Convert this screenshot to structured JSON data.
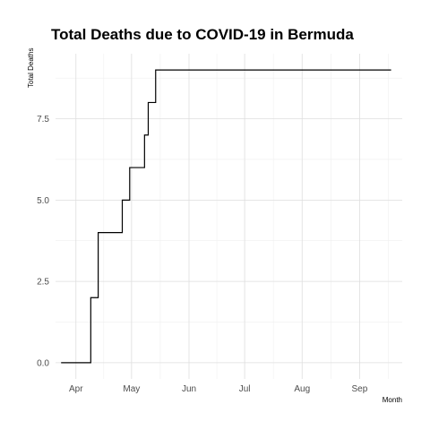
{
  "chart_data": {
    "type": "line",
    "title": "Total Deaths due to COVID-19 in Bermuda",
    "xlabel": "Month",
    "ylabel": "Total Deaths",
    "x_ticks": [
      {
        "label": "Apr",
        "date": "2020-04-01"
      },
      {
        "label": "May",
        "date": "2020-05-01"
      },
      {
        "label": "Jun",
        "date": "2020-06-01"
      },
      {
        "label": "Jul",
        "date": "2020-07-01"
      },
      {
        "label": "Aug",
        "date": "2020-08-01"
      },
      {
        "label": "Sep",
        "date": "2020-09-01"
      }
    ],
    "y_ticks": [
      "0.0",
      "2.5",
      "5.0",
      "7.5"
    ],
    "xlim": [
      "2020-03-21",
      "2020-09-24"
    ],
    "ylim": [
      -0.5,
      9.5
    ],
    "grid": true,
    "legend": "none",
    "line_color": "#000000",
    "series": [
      {
        "x": [
          "2020-03-24",
          "2020-04-08",
          "2020-04-09",
          "2020-04-10",
          "2020-04-13",
          "2020-04-14",
          "2020-04-26",
          "2020-04-27",
          "2020-04-30",
          "2020-05-01",
          "2020-05-08",
          "2020-05-09",
          "2020-05-10",
          "2020-05-14",
          "2020-09-18"
        ],
        "y": [
          0,
          0,
          2,
          2,
          4,
          4,
          5,
          5,
          6,
          6,
          7,
          7,
          8,
          9,
          9
        ],
        "step": "post"
      }
    ]
  }
}
